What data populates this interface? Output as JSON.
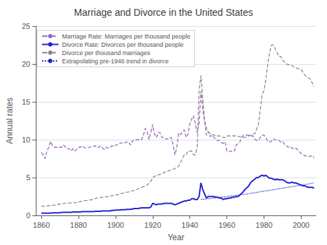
{
  "chart_data": {
    "type": "line",
    "title": "Marriage and Divorce in the United States",
    "xlabel": "Year",
    "ylabel": "Annual rates",
    "xlim": [
      1857,
      2008
    ],
    "ylim": [
      0,
      25
    ],
    "xticks": [
      1860,
      1880,
      1900,
      1920,
      1940,
      1960,
      1980,
      2000
    ],
    "yticks": [
      0,
      5,
      10,
      15,
      20,
      25
    ],
    "grid": true,
    "legend": "upper left",
    "series": [
      {
        "name": "Marriage Rate: Marriages per thousand people",
        "color": "#9966bb",
        "line_style": "dashed",
        "x": [
          1860,
          1861,
          1862,
          1863,
          1864,
          1865,
          1866,
          1867,
          1868,
          1869,
          1870,
          1871,
          1872,
          1873,
          1874,
          1875,
          1876,
          1877,
          1878,
          1879,
          1880,
          1881,
          1882,
          1883,
          1884,
          1885,
          1886,
          1887,
          1888,
          1889,
          1890,
          1891,
          1892,
          1893,
          1894,
          1895,
          1896,
          1897,
          1898,
          1899,
          1900,
          1901,
          1902,
          1903,
          1904,
          1905,
          1906,
          1907,
          1908,
          1909,
          1910,
          1911,
          1912,
          1913,
          1914,
          1915,
          1916,
          1917,
          1918,
          1919,
          1920,
          1921,
          1922,
          1923,
          1924,
          1925,
          1926,
          1927,
          1928,
          1929,
          1930,
          1931,
          1932,
          1933,
          1934,
          1935,
          1936,
          1937,
          1938,
          1939,
          1940,
          1941,
          1942,
          1943,
          1944,
          1945,
          1946,
          1947,
          1948,
          1949,
          1950,
          1951,
          1952,
          1953,
          1954,
          1955,
          1956,
          1957,
          1958,
          1959,
          1960,
          1961,
          1962,
          1963,
          1964,
          1965,
          1966,
          1967,
          1968,
          1969,
          1970,
          1971,
          1972,
          1973,
          1974,
          1975,
          1976,
          1977,
          1978,
          1979,
          1980,
          1981,
          1982,
          1983,
          1984,
          1985,
          1986,
          1987,
          1988,
          1989,
          1990,
          1991,
          1992,
          1993,
          1994,
          1995,
          1996,
          1997,
          1998,
          1999,
          2000,
          2001,
          2002,
          2003,
          2004,
          2005,
          2006,
          2007
        ],
        "values": [
          8.3,
          8.0,
          7.5,
          8.5,
          9.0,
          9.8,
          9.2,
          9.0,
          9.0,
          9.0,
          9.0,
          9.0,
          9.3,
          9.0,
          8.8,
          8.8,
          8.5,
          8.8,
          8.5,
          8.7,
          9.0,
          9.0,
          9.2,
          9.0,
          8.9,
          8.9,
          9.0,
          9.1,
          9.1,
          9.2,
          9.0,
          9.0,
          9.2,
          8.9,
          8.7,
          9.0,
          8.9,
          9.0,
          9.2,
          9.1,
          9.3,
          9.3,
          9.5,
          9.6,
          9.5,
          9.6,
          9.7,
          9.7,
          9.3,
          9.8,
          10.0,
          10.0,
          10.0,
          10.0,
          10.0,
          10.6,
          11.5,
          11.0,
          10.0,
          11.0,
          12.0,
          10.7,
          10.3,
          11.0,
          10.9,
          10.3,
          10.3,
          10.1,
          10.1,
          10.3,
          10.3,
          9.3,
          8.0,
          9.0,
          10.9,
          10.7,
          11.0,
          11.3,
          10.3,
          10.7,
          12.1,
          12.7,
          13.2,
          12.1,
          10.9,
          12.2,
          16.4,
          13.9,
          12.4,
          10.6,
          11.1,
          10.4,
          10.6,
          10.3,
          10.0,
          9.9,
          9.9,
          9.6,
          9.5,
          9.7,
          8.5,
          8.4,
          8.5,
          8.5,
          8.5,
          9.3,
          9.5,
          9.7,
          10.3,
          10.6,
          10.6,
          10.6,
          10.6,
          10.5,
          10.5,
          10.1,
          9.9,
          9.9,
          10.3,
          10.6,
          10.6,
          10.3,
          9.8,
          9.7,
          9.8,
          10.1,
          10.0,
          9.9,
          9.9,
          9.7,
          9.8,
          9.4,
          9.2,
          9.0,
          9.1,
          8.9,
          8.8,
          8.9,
          8.7,
          8.4,
          8.2,
          8.0,
          7.9,
          7.8,
          7.8,
          7.8,
          7.9,
          7.6
        ]
      },
      {
        "name": "Divorce Rate: Divorces per thousand people",
        "color": "#2222cc",
        "line_style": "solid",
        "x": [
          1860,
          1861,
          1862,
          1863,
          1864,
          1865,
          1866,
          1867,
          1868,
          1869,
          1870,
          1871,
          1872,
          1873,
          1874,
          1875,
          1876,
          1877,
          1878,
          1879,
          1880,
          1881,
          1882,
          1883,
          1884,
          1885,
          1886,
          1887,
          1888,
          1889,
          1890,
          1891,
          1892,
          1893,
          1894,
          1895,
          1896,
          1897,
          1898,
          1899,
          1900,
          1901,
          1902,
          1903,
          1904,
          1905,
          1906,
          1907,
          1908,
          1909,
          1910,
          1911,
          1912,
          1913,
          1914,
          1915,
          1916,
          1917,
          1918,
          1919,
          1920,
          1921,
          1922,
          1923,
          1924,
          1925,
          1926,
          1927,
          1928,
          1929,
          1930,
          1931,
          1932,
          1933,
          1934,
          1935,
          1936,
          1937,
          1938,
          1939,
          1940,
          1941,
          1942,
          1943,
          1944,
          1945,
          1946,
          1947,
          1948,
          1949,
          1950,
          1951,
          1952,
          1953,
          1954,
          1955,
          1956,
          1957,
          1958,
          1959,
          1960,
          1961,
          1962,
          1963,
          1964,
          1965,
          1966,
          1967,
          1968,
          1969,
          1970,
          1971,
          1972,
          1973,
          1974,
          1975,
          1976,
          1977,
          1978,
          1979,
          1980,
          1981,
          1982,
          1983,
          1984,
          1985,
          1986,
          1987,
          1988,
          1989,
          1990,
          1991,
          1992,
          1993,
          1994,
          1995,
          1996,
          1997,
          1998,
          1999,
          2000,
          2001,
          2002,
          2003,
          2004,
          2005,
          2006,
          2007
        ],
        "values": [
          0.3,
          0.3,
          0.3,
          0.3,
          0.3,
          0.3,
          0.35,
          0.35,
          0.35,
          0.35,
          0.35,
          0.4,
          0.4,
          0.4,
          0.4,
          0.4,
          0.4,
          0.45,
          0.45,
          0.45,
          0.45,
          0.45,
          0.5,
          0.5,
          0.5,
          0.5,
          0.5,
          0.5,
          0.5,
          0.55,
          0.55,
          0.55,
          0.55,
          0.6,
          0.6,
          0.6,
          0.6,
          0.6,
          0.65,
          0.65,
          0.7,
          0.7,
          0.7,
          0.75,
          0.75,
          0.75,
          0.8,
          0.8,
          0.8,
          0.85,
          0.9,
          0.9,
          0.9,
          0.95,
          1.0,
          1.0,
          1.0,
          1.0,
          1.0,
          1.1,
          1.6,
          1.5,
          1.4,
          1.5,
          1.5,
          1.5,
          1.6,
          1.6,
          1.6,
          1.6,
          1.6,
          1.5,
          1.4,
          1.5,
          1.6,
          1.7,
          1.8,
          1.9,
          1.9,
          2.0,
          2.0,
          2.2,
          2.2,
          2.1,
          2.1,
          2.5,
          4.3,
          3.4,
          2.8,
          2.3,
          2.5,
          2.5,
          2.5,
          2.5,
          2.4,
          2.4,
          2.3,
          2.3,
          2.1,
          2.2,
          2.2,
          2.3,
          2.3,
          2.4,
          2.4,
          2.5,
          2.5,
          2.7,
          2.9,
          3.2,
          3.5,
          3.7,
          4.0,
          4.4,
          4.6,
          4.8,
          5.0,
          5.0,
          5.2,
          5.3,
          5.2,
          5.3,
          5.1,
          4.9,
          4.9,
          4.8,
          4.7,
          4.8,
          4.7,
          4.7,
          4.7,
          4.6,
          4.4,
          4.3,
          4.3,
          4.4,
          4.3,
          4.3,
          4.2,
          4.1,
          4.0,
          3.9,
          3.9,
          3.8,
          3.7,
          3.7,
          3.7,
          3.6
        ]
      },
      {
        "name": "Divorce per thousand marriages",
        "color": "#888888",
        "line_style": "dashed",
        "x": [
          1860,
          1862,
          1865,
          1867,
          1870,
          1873,
          1876,
          1879,
          1882,
          1885,
          1888,
          1890,
          1893,
          1896,
          1899,
          1900,
          1902,
          1905,
          1907,
          1910,
          1912,
          1915,
          1917,
          1919,
          1920,
          1922,
          1925,
          1927,
          1930,
          1932,
          1934,
          1935,
          1936,
          1937,
          1938,
          1939,
          1940,
          1941,
          1942,
          1943,
          1944,
          1945,
          1946,
          1947,
          1948,
          1949,
          1950,
          1951,
          1952,
          1953,
          1954,
          1955,
          1956,
          1957,
          1958,
          1959,
          1960,
          1962,
          1965,
          1967,
          1970,
          1972,
          1975,
          1977,
          1978,
          1979,
          1980,
          1981,
          1982,
          1983,
          1984,
          1985,
          1986,
          1987,
          1988,
          1989,
          1990,
          1992,
          1995,
          1997,
          2000,
          2002,
          2005,
          2007
        ],
        "values": [
          1.2,
          1.25,
          1.3,
          1.35,
          1.5,
          1.6,
          1.65,
          1.7,
          1.9,
          2.0,
          2.1,
          2.3,
          2.4,
          2.5,
          2.65,
          2.7,
          2.8,
          3.0,
          3.1,
          3.3,
          3.5,
          3.8,
          4.0,
          4.5,
          5.0,
          5.3,
          5.5,
          5.8,
          6.0,
          6.2,
          6.5,
          7.0,
          7.5,
          8.0,
          8.0,
          8.5,
          8.5,
          8.5,
          8.0,
          8.0,
          9.0,
          16.5,
          18.5,
          15.5,
          12.5,
          11.5,
          11.0,
          10.8,
          10.7,
          10.6,
          10.5,
          10.5,
          10.5,
          10.4,
          10.3,
          10.3,
          10.5,
          10.5,
          10.5,
          10.4,
          10.3,
          10.5,
          10.8,
          12.0,
          14.0,
          16.0,
          16.5,
          18.0,
          20.0,
          21.5,
          22.5,
          22.5,
          22.0,
          21.5,
          21.0,
          21.0,
          20.5,
          20.0,
          19.8,
          19.5,
          19.3,
          18.5,
          18.0,
          17.0
        ]
      },
      {
        "name": "Extrapolating pre-1946 trend in divorce",
        "color": "#2222cc",
        "line_style": "dotted",
        "x": [
          1946,
          1950,
          1955,
          1960,
          1965,
          1970,
          1975,
          1980,
          1985,
          1990,
          1995,
          2000,
          2005,
          2007
        ],
        "values": [
          2.1,
          2.2,
          2.35,
          2.5,
          2.65,
          2.8,
          3.0,
          3.2,
          3.4,
          3.6,
          3.8,
          4.0,
          4.2,
          4.3
        ]
      }
    ]
  }
}
